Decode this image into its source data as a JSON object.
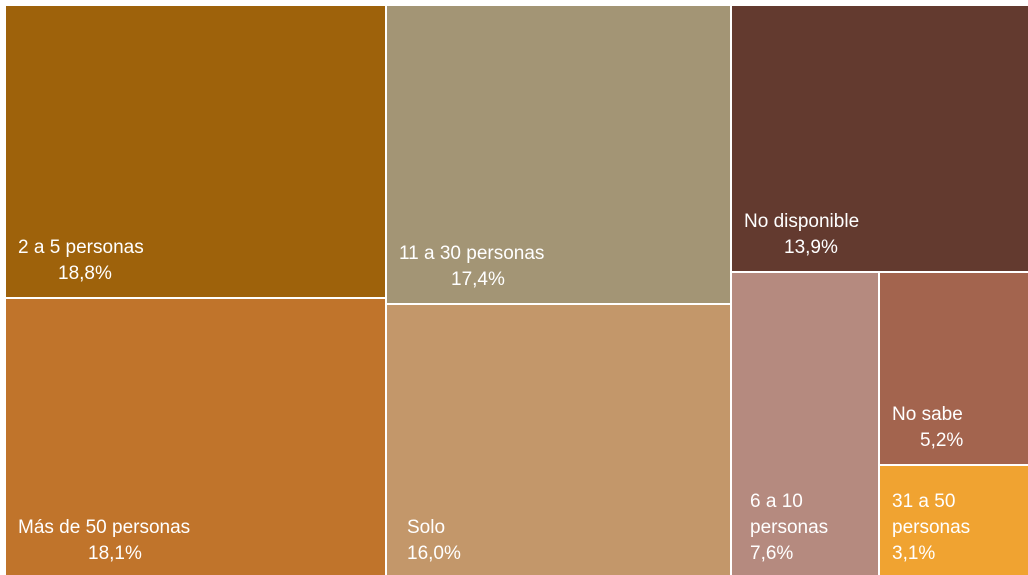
{
  "chart_data": {
    "type": "treemap",
    "title": "",
    "unit": "%",
    "items": [
      {
        "label_lines": [
          "2 a 5 personas"
        ],
        "value": 18.8,
        "value_label": "18,8%",
        "color": "#9E620B"
      },
      {
        "label_lines": [
          "Más de 50 personas"
        ],
        "value": 18.1,
        "value_label": "18,1%",
        "color": "#C0742B"
      },
      {
        "label_lines": [
          "11 a 30 personas"
        ],
        "value": 17.4,
        "value_label": "17,4%",
        "color": "#A39575"
      },
      {
        "label_lines": [
          "Solo"
        ],
        "value": 16.0,
        "value_label": "16,0%",
        "color": "#C3976A"
      },
      {
        "label_lines": [
          "No disponible"
        ],
        "value": 13.9,
        "value_label": "13,9%",
        "color": "#633A2F"
      },
      {
        "label_lines": [
          "6 a 10",
          "personas"
        ],
        "value": 7.6,
        "value_label": "7,6%",
        "color": "#B58A7F"
      },
      {
        "label_lines": [
          "No sabe"
        ],
        "value": 5.2,
        "value_label": "5,2%",
        "color": "#A3644E"
      },
      {
        "label_lines": [
          "31 a 50",
          "personas"
        ],
        "value": 3.1,
        "value_label": "3,1%",
        "color": "#F0A331"
      }
    ]
  }
}
